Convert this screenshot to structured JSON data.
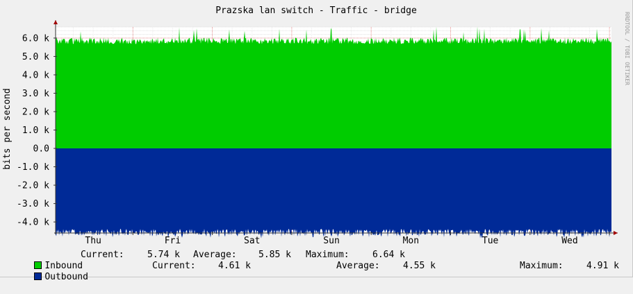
{
  "watermark": "RRDTOOL / TOBI OETIKER",
  "chart_data": {
    "type": "area",
    "title": "Prazska lan switch - Traffic - bridge",
    "ylabel": "bits per second",
    "xlabel": "",
    "ylim": [
      -4600,
      6600
    ],
    "y_ticks": [
      "6.0 k",
      "5.0 k",
      "4.0 k",
      "3.0 k",
      "2.0 k",
      "1.0 k",
      "0.0",
      "-1.0 k",
      "-2.0 k",
      "-3.0 k",
      "-4.0 k"
    ],
    "y_tick_values": [
      6000,
      5000,
      4000,
      3000,
      2000,
      1000,
      0,
      -1000,
      -2000,
      -3000,
      -4000
    ],
    "x_ticks": [
      "Thu",
      "Fri",
      "Sat",
      "Sun",
      "Mon",
      "Tue",
      "Wed"
    ],
    "grid": true,
    "series": [
      {
        "name": "Inbound",
        "color": "#00cc00",
        "stats": {
          "current_label": "Current:",
          "current": "5.74 k",
          "average_label": "Average:",
          "average": "5.85 k",
          "maximum_label": "Maximum:",
          "maximum": "6.64 k"
        },
        "approx_level": 5850,
        "approx_peak": 6640
      },
      {
        "name": "Outbound",
        "color": "#002a97",
        "stats": {
          "current_label": "Current:",
          "current": "4.61 k",
          "average_label": "Average:",
          "average": "4.55 k",
          "maximum_label": "Maximum:",
          "maximum": "4.91 k"
        },
        "approx_level": -4550,
        "approx_peak": -4910
      }
    ]
  }
}
